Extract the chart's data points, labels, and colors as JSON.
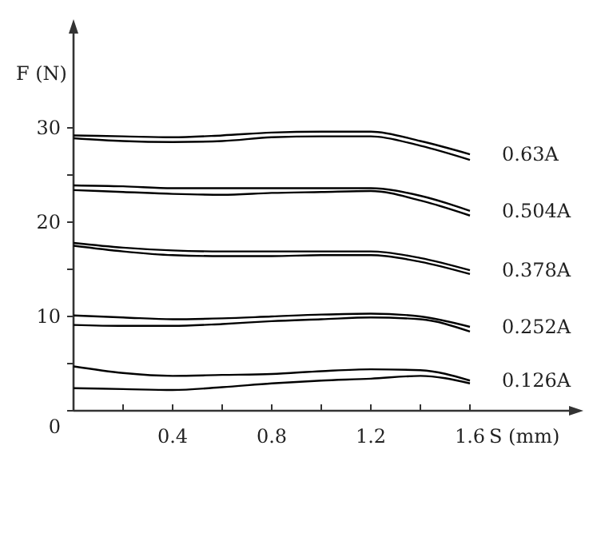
{
  "chart_data": {
    "type": "line",
    "xlabel": "S (mm)",
    "ylabel": "F (N)",
    "x": [
      0,
      0.2,
      0.4,
      0.6,
      0.8,
      1.0,
      1.2,
      1.4,
      1.6
    ],
    "xlim": [
      0,
      2.0
    ],
    "ylim": [
      0,
      40
    ],
    "xticks": [
      {
        "value": 0,
        "label": null
      },
      {
        "value": 0.2,
        "label": null
      },
      0.4,
      {
        "value": 0.6,
        "label": null
      },
      0.8,
      {
        "value": 1.0,
        "label": null
      },
      1.2,
      {
        "value": 1.4,
        "label": null
      },
      1.6
    ],
    "yticks": [
      0,
      {
        "value": 5,
        "label": null
      },
      10,
      {
        "value": 15,
        "label": null
      },
      20,
      {
        "value": 25,
        "label": null
      },
      30
    ],
    "marker": "none",
    "line_style": "solid",
    "series": [
      {
        "name": "0.63A",
        "color": "#000000",
        "values": [
          29.2,
          29.1,
          29.0,
          29.2,
          29.5,
          29.6,
          29.6,
          28.6,
          27.2
        ]
      },
      {
        "color": "#000000",
        "values": [
          28.9,
          28.6,
          28.5,
          28.6,
          29.0,
          29.1,
          29.1,
          28.1,
          26.6
        ]
      },
      {
        "name": "0.504A",
        "color": "#000000",
        "values": [
          23.9,
          23.8,
          23.6,
          23.6,
          23.6,
          23.6,
          23.6,
          22.8,
          21.2
        ]
      },
      {
        "color": "#000000",
        "values": [
          23.4,
          23.2,
          23.0,
          22.9,
          23.1,
          23.2,
          23.3,
          22.3,
          20.7
        ]
      },
      {
        "name": "0.378A",
        "color": "#000000",
        "values": [
          17.8,
          17.3,
          17.0,
          16.9,
          16.9,
          16.9,
          16.9,
          16.2,
          14.9
        ]
      },
      {
        "color": "#000000",
        "values": [
          17.5,
          16.9,
          16.5,
          16.4,
          16.4,
          16.5,
          16.5,
          15.8,
          14.5
        ]
      },
      {
        "name": "0.252A",
        "color": "#000000",
        "values": [
          10.1,
          9.9,
          9.7,
          9.8,
          10.0,
          10.2,
          10.3,
          10.0,
          8.9
        ]
      },
      {
        "color": "#000000",
        "values": [
          9.1,
          9.0,
          9.0,
          9.2,
          9.5,
          9.7,
          9.9,
          9.7,
          8.4
        ]
      },
      {
        "name": "0.126A",
        "color": "#000000",
        "values": [
          4.7,
          4.0,
          3.7,
          3.8,
          3.9,
          4.2,
          4.4,
          4.3,
          3.2
        ]
      },
      {
        "color": "#000000",
        "values": [
          2.4,
          2.3,
          2.2,
          2.5,
          2.9,
          3.2,
          3.4,
          3.7,
          2.9
        ]
      }
    ]
  }
}
